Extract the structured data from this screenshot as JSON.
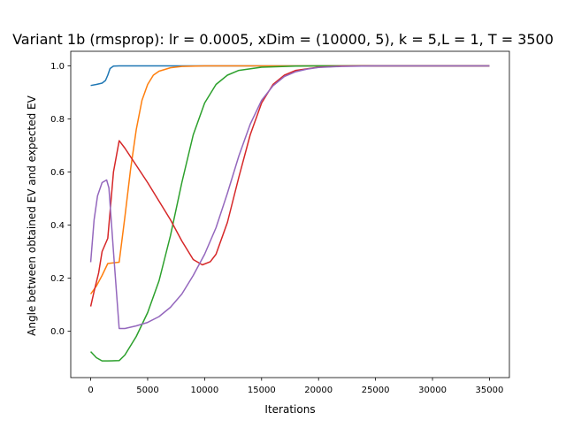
{
  "chart_data": {
    "type": "line",
    "title": "Variant 1b (rmsprop): lr = 0.0005, xDim = (10000, 5), k = 5,L = 1, T = 3500",
    "xlabel": "Iterations",
    "ylabel": "Angle between obtained EV and expected EV",
    "xlim": [
      -1750,
      36750
    ],
    "ylim": [
      -0.175,
      1.055
    ],
    "xticks": [
      0,
      5000,
      10000,
      15000,
      20000,
      25000,
      30000,
      35000
    ],
    "yticks": [
      0.0,
      0.2,
      0.4,
      0.6,
      0.8,
      1.0
    ],
    "xtick_labels": [
      "0",
      "5000",
      "10000",
      "15000",
      "20000",
      "25000",
      "30000",
      "35000"
    ],
    "ytick_labels": [
      "0.0",
      "0.2",
      "0.4",
      "0.6",
      "0.8",
      "1.0"
    ],
    "grid": false,
    "legend": false,
    "series": [
      {
        "color": "#1f77b4",
        "points": [
          [
            0,
            0.926
          ],
          [
            500,
            0.93
          ],
          [
            1000,
            0.935
          ],
          [
            1300,
            0.945
          ],
          [
            1500,
            0.965
          ],
          [
            1700,
            0.99
          ],
          [
            2000,
            0.999
          ],
          [
            2500,
            1.0
          ],
          [
            35000,
            1.0
          ]
        ]
      },
      {
        "color": "#ff7f0e",
        "points": [
          [
            0,
            0.14
          ],
          [
            500,
            0.17
          ],
          [
            1000,
            0.21
          ],
          [
            1500,
            0.255
          ],
          [
            2500,
            0.26
          ],
          [
            3000,
            0.43
          ],
          [
            3500,
            0.61
          ],
          [
            4000,
            0.76
          ],
          [
            4500,
            0.87
          ],
          [
            5000,
            0.93
          ],
          [
            5500,
            0.965
          ],
          [
            6000,
            0.98
          ],
          [
            7000,
            0.993
          ],
          [
            8000,
            0.998
          ],
          [
            10000,
            1.0
          ],
          [
            35000,
            1.0
          ]
        ]
      },
      {
        "color": "#2ca02c",
        "points": [
          [
            0,
            -0.077
          ],
          [
            500,
            -0.1
          ],
          [
            1000,
            -0.112
          ],
          [
            1500,
            -0.112
          ],
          [
            2500,
            -0.111
          ],
          [
            3000,
            -0.09
          ],
          [
            4000,
            -0.02
          ],
          [
            5000,
            0.07
          ],
          [
            6000,
            0.19
          ],
          [
            7000,
            0.36
          ],
          [
            8000,
            0.56
          ],
          [
            9000,
            0.74
          ],
          [
            10000,
            0.86
          ],
          [
            11000,
            0.93
          ],
          [
            12000,
            0.965
          ],
          [
            13000,
            0.983
          ],
          [
            15000,
            0.995
          ],
          [
            18000,
            0.999
          ],
          [
            20000,
            1.0
          ],
          [
            35000,
            1.0
          ]
        ]
      },
      {
        "color": "#d62728",
        "points": [
          [
            0,
            0.093
          ],
          [
            300,
            0.15
          ],
          [
            700,
            0.22
          ],
          [
            1000,
            0.3
          ],
          [
            1500,
            0.35
          ],
          [
            2000,
            0.6
          ],
          [
            2500,
            0.718
          ],
          [
            3000,
            0.69
          ],
          [
            4000,
            0.625
          ],
          [
            5000,
            0.56
          ],
          [
            6000,
            0.49
          ],
          [
            7000,
            0.42
          ],
          [
            8000,
            0.34
          ],
          [
            9000,
            0.27
          ],
          [
            9800,
            0.25
          ],
          [
            10500,
            0.262
          ],
          [
            11000,
            0.29
          ],
          [
            12000,
            0.41
          ],
          [
            13000,
            0.58
          ],
          [
            14000,
            0.74
          ],
          [
            15000,
            0.86
          ],
          [
            16000,
            0.93
          ],
          [
            17000,
            0.965
          ],
          [
            18000,
            0.983
          ],
          [
            20000,
            0.995
          ],
          [
            22000,
            0.999
          ],
          [
            24000,
            1.0
          ],
          [
            35000,
            1.0
          ]
        ]
      },
      {
        "color": "#9467bd",
        "points": [
          [
            0,
            0.26
          ],
          [
            300,
            0.42
          ],
          [
            600,
            0.51
          ],
          [
            1000,
            0.56
          ],
          [
            1400,
            0.57
          ],
          [
            1600,
            0.54
          ],
          [
            2000,
            0.3
          ],
          [
            2500,
            0.01
          ],
          [
            3000,
            0.01
          ],
          [
            4000,
            0.02
          ],
          [
            5000,
            0.033
          ],
          [
            6000,
            0.055
          ],
          [
            7000,
            0.09
          ],
          [
            8000,
            0.14
          ],
          [
            9000,
            0.21
          ],
          [
            10000,
            0.29
          ],
          [
            11000,
            0.39
          ],
          [
            12000,
            0.52
          ],
          [
            13000,
            0.66
          ],
          [
            14000,
            0.78
          ],
          [
            15000,
            0.87
          ],
          [
            16000,
            0.925
          ],
          [
            17000,
            0.96
          ],
          [
            18000,
            0.978
          ],
          [
            19000,
            0.988
          ],
          [
            20000,
            0.994
          ],
          [
            22000,
            0.998
          ],
          [
            25000,
            1.0
          ],
          [
            35000,
            1.0
          ]
        ]
      }
    ]
  }
}
